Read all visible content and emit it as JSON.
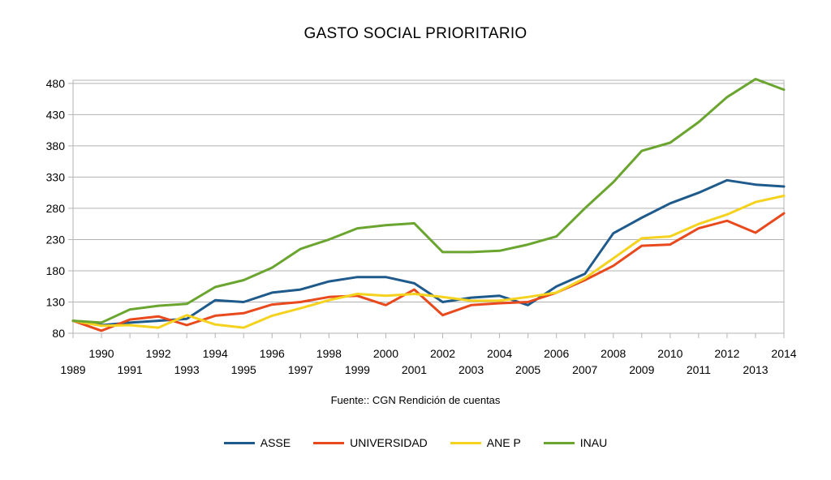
{
  "chart_data": {
    "type": "line",
    "title": "GASTO SOCIAL PRIORITARIO",
    "source": "Fuente:: CGN Rendición de cuentas",
    "x": [
      1989,
      1990,
      1991,
      1992,
      1993,
      1994,
      1995,
      1996,
      1997,
      1998,
      1999,
      2000,
      2001,
      2002,
      2003,
      2004,
      2005,
      2006,
      2007,
      2008,
      2009,
      2010,
      2011,
      2012,
      2013,
      2014
    ],
    "x_tick_labels_upper": [
      "1990",
      "1992",
      "1994",
      "1996",
      "1998",
      "2000",
      "2002",
      "2004",
      "2006",
      "2008",
      "2010",
      "2012",
      "2014"
    ],
    "x_tick_labels_lower": [
      "1989",
      "1991",
      "1993",
      "1995",
      "1997",
      "1999",
      "2001",
      "2003",
      "2005",
      "2007",
      "2009",
      "2011",
      "2013"
    ],
    "y_ticks": [
      "80",
      "130",
      "180",
      "230",
      "280",
      "330",
      "380",
      "430",
      "480"
    ],
    "ylim": [
      80,
      480
    ],
    "grid": "horizontal",
    "legend_position": "bottom",
    "series": [
      {
        "name": "ASSE",
        "color": "#1f5a8c",
        "values": [
          100,
          93,
          97,
          100,
          103,
          133,
          130,
          145,
          150,
          163,
          170,
          170,
          160,
          130,
          137,
          140,
          125,
          155,
          175,
          240,
          265,
          288,
          305,
          325,
          318,
          315
        ]
      },
      {
        "name": "UNIVERSIDAD",
        "color": "#e8491d",
        "values": [
          100,
          84,
          102,
          107,
          93,
          108,
          112,
          126,
          130,
          138,
          140,
          125,
          150,
          109,
          125,
          128,
          130,
          145,
          165,
          188,
          220,
          222,
          248,
          260,
          241,
          272
        ]
      },
      {
        "name": "ANE P",
        "color": "#f5d21e",
        "values": [
          100,
          92,
          93,
          89,
          109,
          94,
          89,
          108,
          120,
          133,
          143,
          140,
          143,
          138,
          132,
          132,
          138,
          145,
          168,
          200,
          232,
          235,
          255,
          270,
          290,
          300
        ]
      },
      {
        "name": "INAU",
        "color": "#6aa530",
        "values": [
          100,
          97,
          118,
          124,
          127,
          154,
          165,
          185,
          215,
          230,
          248,
          253,
          256,
          210,
          210,
          212,
          222,
          235,
          280,
          322,
          372,
          385,
          418,
          458,
          487,
          470
        ]
      }
    ]
  }
}
